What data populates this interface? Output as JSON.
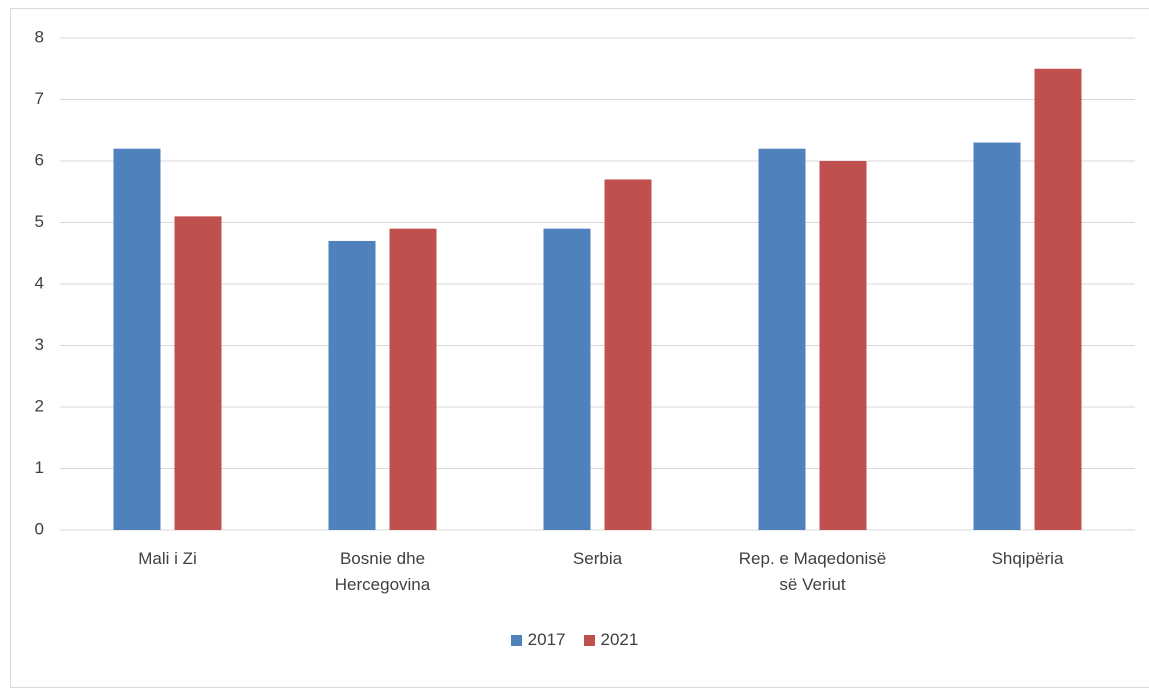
{
  "chart_data": {
    "type": "bar",
    "categories": [
      "Mali i Zi",
      "Bosnie dhe Hercegovina",
      "Serbia",
      "Rep. e Maqedonisë së Veriut",
      "Shqipëria"
    ],
    "series": [
      {
        "name": "2017",
        "color": "#4f81bd",
        "values": [
          6.2,
          4.7,
          4.9,
          6.2,
          6.3
        ]
      },
      {
        "name": "2021",
        "color": "#c0504d",
        "values": [
          5.1,
          4.9,
          5.7,
          6.0,
          7.5
        ]
      }
    ],
    "ylim": [
      0,
      8
    ],
    "yticks": [
      0,
      1,
      2,
      3,
      4,
      5,
      6,
      7,
      8
    ],
    "grid": true,
    "legend": "bottom"
  }
}
